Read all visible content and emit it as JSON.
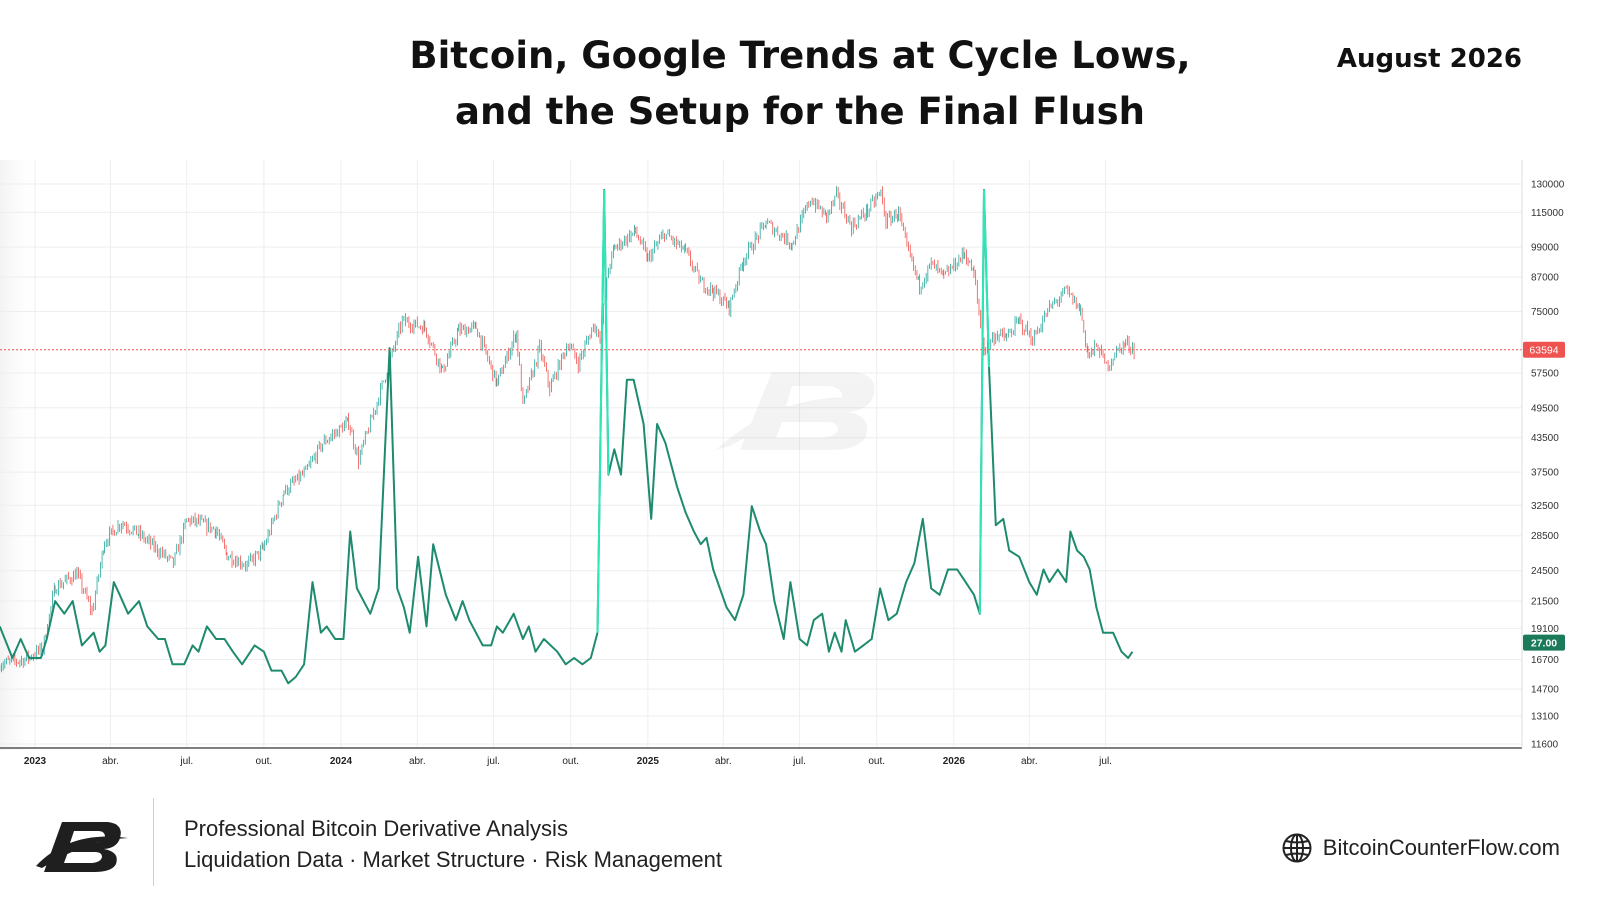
{
  "header": {
    "title_line1": "Bitcoin, Google Trends at Cycle Lows,",
    "title_line2": "and the Setup for the Final Flush",
    "date": "August 2026"
  },
  "footer": {
    "tagline1": "Professional Bitcoin Derivative Analysis",
    "tagline2": "Liquidation Data · Market Structure · Risk Management",
    "website": "BitcoinCounterFlow.com",
    "website_icon": "globe-icon",
    "logo_icon": "bcf-logo-icon"
  },
  "colors": {
    "price_up": "#26a69a",
    "price_down": "#ef5350",
    "trends_line": "#1e8a6e",
    "trends_peak": "#2ee6b8",
    "price_badge": "#ef5350",
    "trends_badge": "#1a7a5a",
    "grid": "#eeeeee"
  },
  "chart_data": {
    "type": "line",
    "y_scale": "log",
    "ylim": [
      11600,
      130000
    ],
    "y_ticks": [
      130000,
      115000,
      99000,
      87000,
      75000,
      57500,
      49500,
      43500,
      37500,
      32500,
      28500,
      24500,
      21500,
      19100,
      16700,
      14700,
      13100,
      11600
    ],
    "x_ticks": [
      "2023",
      "abr.",
      "jul.",
      "out.",
      "2024",
      "abr.",
      "jul.",
      "out.",
      "2025",
      "abr.",
      "jul.",
      "out.",
      "2026",
      "abr.",
      "jul."
    ],
    "x_tick_dates": [
      "2023-01-01",
      "2023-04-01",
      "2023-07-01",
      "2023-10-01",
      "2024-01-01",
      "2024-04-01",
      "2024-07-01",
      "2024-10-01",
      "2025-01-01",
      "2025-04-01",
      "2025-07-01",
      "2025-10-01",
      "2026-01-01",
      "2026-04-01",
      "2026-07-01"
    ],
    "last_price_label": "63594",
    "last_price": 63594,
    "last_trends_label": "27.00",
    "last_trends": 27,
    "series": [
      {
        "kind": "price",
        "points": [
          [
            "2022-11-20",
            16400
          ],
          [
            "2022-12-20",
            16700
          ],
          [
            "2023-01-10",
            17500
          ],
          [
            "2023-01-25",
            22800
          ],
          [
            "2023-02-20",
            24200
          ],
          [
            "2023-03-10",
            20500
          ],
          [
            "2023-03-25",
            27800
          ],
          [
            "2023-04-14",
            30200
          ],
          [
            "2023-05-05",
            28700
          ],
          [
            "2023-06-15",
            25300
          ],
          [
            "2023-07-01",
            30500
          ],
          [
            "2023-07-15",
            30200
          ],
          [
            "2023-08-05",
            29200
          ],
          [
            "2023-08-18",
            26200
          ],
          [
            "2023-09-11",
            25100
          ],
          [
            "2023-09-30",
            26900
          ],
          [
            "2023-10-25",
            34500
          ],
          [
            "2023-11-20",
            37500
          ],
          [
            "2023-12-10",
            42500
          ],
          [
            "2024-01-10",
            46500
          ],
          [
            "2024-01-22",
            39500
          ],
          [
            "2024-02-15",
            52000
          ],
          [
            "2024-03-14",
            72000
          ],
          [
            "2024-04-10",
            70000
          ],
          [
            "2024-05-01",
            58000
          ],
          [
            "2024-05-20",
            69000
          ],
          [
            "2024-06-10",
            70000
          ],
          [
            "2024-07-05",
            55000
          ],
          [
            "2024-07-28",
            68500
          ],
          [
            "2024-08-05",
            50000
          ],
          [
            "2024-08-25",
            64000
          ],
          [
            "2024-09-06",
            53800
          ],
          [
            "2024-09-28",
            65500
          ],
          [
            "2024-10-10",
            60000
          ],
          [
            "2024-10-28",
            70500
          ],
          [
            "2024-11-05",
            68000
          ],
          [
            "2024-11-15",
            90000
          ],
          [
            "2024-11-22",
            98500
          ],
          [
            "2024-12-17",
            106000
          ],
          [
            "2025-01-01",
            94000
          ],
          [
            "2025-01-21",
            105000
          ],
          [
            "2025-02-15",
            97000
          ],
          [
            "2025-03-05",
            85000
          ],
          [
            "2025-03-20",
            82000
          ],
          [
            "2025-04-08",
            76500
          ],
          [
            "2025-04-25",
            94000
          ],
          [
            "2025-05-22",
            110000
          ],
          [
            "2025-06-22",
            100500
          ],
          [
            "2025-07-14",
            122000
          ],
          [
            "2025-08-02",
            113000
          ],
          [
            "2025-08-14",
            123500
          ],
          [
            "2025-09-01",
            108000
          ],
          [
            "2025-09-20",
            116000
          ],
          [
            "2025-10-06",
            125500
          ],
          [
            "2025-10-12",
            110500
          ],
          [
            "2025-10-27",
            115000
          ],
          [
            "2025-11-04",
            101000
          ],
          [
            "2025-11-21",
            84000
          ],
          [
            "2025-12-05",
            92000
          ],
          [
            "2025-12-20",
            87000
          ],
          [
            "2026-01-14",
            96500
          ],
          [
            "2026-01-25",
            88000
          ],
          [
            "2026-02-06",
            63500
          ],
          [
            "2026-02-20",
            68000
          ],
          [
            "2026-03-05",
            67000
          ],
          [
            "2026-03-20",
            72000
          ],
          [
            "2026-04-05",
            66500
          ],
          [
            "2026-04-25",
            76000
          ],
          [
            "2026-05-15",
            82000
          ],
          [
            "2026-06-01",
            75500
          ],
          [
            "2026-06-10",
            62000
          ],
          [
            "2026-06-22",
            64500
          ],
          [
            "2026-07-02",
            59000
          ],
          [
            "2026-07-12",
            62500
          ],
          [
            "2026-07-25",
            65500
          ],
          [
            "2026-08-05",
            63594
          ]
        ]
      },
      {
        "kind": "trends",
        "points": [
          [
            "2022-11-20",
            31
          ],
          [
            "2022-12-05",
            26
          ],
          [
            "2022-12-15",
            29
          ],
          [
            "2022-12-25",
            26
          ],
          [
            "2023-01-08",
            26
          ],
          [
            "2023-01-15",
            29
          ],
          [
            "2023-01-25",
            35
          ],
          [
            "2023-02-05",
            33
          ],
          [
            "2023-02-15",
            35
          ],
          [
            "2023-02-26",
            28
          ],
          [
            "2023-03-12",
            30
          ],
          [
            "2023-03-19",
            27
          ],
          [
            "2023-03-26",
            28
          ],
          [
            "2023-04-05",
            38
          ],
          [
            "2023-04-12",
            36
          ],
          [
            "2023-04-22",
            33
          ],
          [
            "2023-05-05",
            35
          ],
          [
            "2023-05-15",
            31
          ],
          [
            "2023-05-28",
            29
          ],
          [
            "2023-06-05",
            29
          ],
          [
            "2023-06-14",
            25
          ],
          [
            "2023-06-28",
            25
          ],
          [
            "2023-07-08",
            28
          ],
          [
            "2023-07-15",
            27
          ],
          [
            "2023-07-25",
            31
          ],
          [
            "2023-08-05",
            29
          ],
          [
            "2023-08-15",
            29
          ],
          [
            "2023-08-25",
            27
          ],
          [
            "2023-09-05",
            25
          ],
          [
            "2023-09-20",
            28
          ],
          [
            "2023-10-01",
            27
          ],
          [
            "2023-10-10",
            24
          ],
          [
            "2023-10-22",
            24
          ],
          [
            "2023-10-30",
            22
          ],
          [
            "2023-11-08",
            23
          ],
          [
            "2023-11-18",
            25
          ],
          [
            "2023-11-28",
            38
          ],
          [
            "2023-12-08",
            30
          ],
          [
            "2023-12-15",
            31
          ],
          [
            "2023-12-25",
            29
          ],
          [
            "2024-01-04",
            29
          ],
          [
            "2024-01-12",
            46
          ],
          [
            "2024-01-20",
            37
          ],
          [
            "2024-02-05",
            33
          ],
          [
            "2024-02-15",
            37
          ],
          [
            "2024-02-28",
            75
          ],
          [
            "2024-03-08",
            37
          ],
          [
            "2024-03-16",
            34
          ],
          [
            "2024-03-23",
            30
          ],
          [
            "2024-04-02",
            42
          ],
          [
            "2024-04-12",
            31
          ],
          [
            "2024-04-20",
            44
          ],
          [
            "2024-05-05",
            36
          ],
          [
            "2024-05-17",
            32
          ],
          [
            "2024-05-25",
            35
          ],
          [
            "2024-06-02",
            32
          ],
          [
            "2024-06-18",
            28
          ],
          [
            "2024-06-28",
            28
          ],
          [
            "2024-07-05",
            31
          ],
          [
            "2024-07-12",
            30
          ],
          [
            "2024-07-25",
            33
          ],
          [
            "2024-08-05",
            29
          ],
          [
            "2024-08-12",
            31
          ],
          [
            "2024-08-20",
            27
          ],
          [
            "2024-08-30",
            29
          ],
          [
            "2024-09-15",
            27
          ],
          [
            "2024-09-25",
            25
          ],
          [
            "2024-10-05",
            26
          ],
          [
            "2024-10-15",
            25
          ],
          [
            "2024-10-25",
            26
          ],
          [
            "2024-11-02",
            30
          ],
          [
            "2024-11-10",
            100
          ],
          [
            "2024-11-15",
            55
          ],
          [
            "2024-11-22",
            59
          ],
          [
            "2024-11-30",
            55
          ],
          [
            "2024-12-07",
            70
          ],
          [
            "2024-12-15",
            70
          ],
          [
            "2024-12-27",
            63
          ],
          [
            "2025-01-05",
            48
          ],
          [
            "2025-01-12",
            63
          ],
          [
            "2025-01-22",
            60
          ],
          [
            "2025-02-05",
            53
          ],
          [
            "2025-02-15",
            49
          ],
          [
            "2025-02-25",
            46
          ],
          [
            "2025-03-05",
            44
          ],
          [
            "2025-03-12",
            45
          ],
          [
            "2025-03-20",
            40
          ],
          [
            "2025-04-05",
            34
          ],
          [
            "2025-04-15",
            32
          ],
          [
            "2025-04-25",
            36
          ],
          [
            "2025-05-05",
            50
          ],
          [
            "2025-05-15",
            46
          ],
          [
            "2025-05-22",
            44
          ],
          [
            "2025-06-01",
            35
          ],
          [
            "2025-06-12",
            29
          ],
          [
            "2025-06-20",
            38
          ],
          [
            "2025-07-01",
            29
          ],
          [
            "2025-07-10",
            28
          ],
          [
            "2025-07-18",
            32
          ],
          [
            "2025-07-28",
            33
          ],
          [
            "2025-08-05",
            27
          ],
          [
            "2025-08-12",
            30
          ],
          [
            "2025-08-20",
            27
          ],
          [
            "2025-08-25",
            32
          ],
          [
            "2025-09-05",
            27
          ],
          [
            "2025-09-15",
            28
          ],
          [
            "2025-09-25",
            29
          ],
          [
            "2025-10-05",
            37
          ],
          [
            "2025-10-15",
            32
          ],
          [
            "2025-10-25",
            33
          ],
          [
            "2025-11-05",
            38
          ],
          [
            "2025-11-15",
            41
          ],
          [
            "2025-11-25",
            48
          ],
          [
            "2025-12-05",
            37
          ],
          [
            "2025-12-15",
            36
          ],
          [
            "2025-12-25",
            40
          ],
          [
            "2026-01-05",
            40
          ],
          [
            "2026-01-15",
            38
          ],
          [
            "2026-01-25",
            36
          ],
          [
            "2026-02-01",
            33
          ],
          [
            "2026-02-06",
            100
          ],
          [
            "2026-02-12",
            72
          ],
          [
            "2026-02-20",
            47
          ],
          [
            "2026-03-01",
            48
          ],
          [
            "2026-03-08",
            43
          ],
          [
            "2026-03-20",
            42
          ],
          [
            "2026-04-01",
            38
          ],
          [
            "2026-04-10",
            36
          ],
          [
            "2026-04-18",
            40
          ],
          [
            "2026-04-25",
            38
          ],
          [
            "2026-05-05",
            40
          ],
          [
            "2026-05-15",
            38
          ],
          [
            "2026-05-20",
            46
          ],
          [
            "2026-05-28",
            43
          ],
          [
            "2026-06-05",
            42
          ],
          [
            "2026-06-12",
            40
          ],
          [
            "2026-06-20",
            34
          ],
          [
            "2026-06-28",
            30
          ],
          [
            "2026-07-10",
            30
          ],
          [
            "2026-07-20",
            27
          ],
          [
            "2026-07-28",
            26
          ],
          [
            "2026-08-02",
            27
          ]
        ]
      }
    ]
  }
}
